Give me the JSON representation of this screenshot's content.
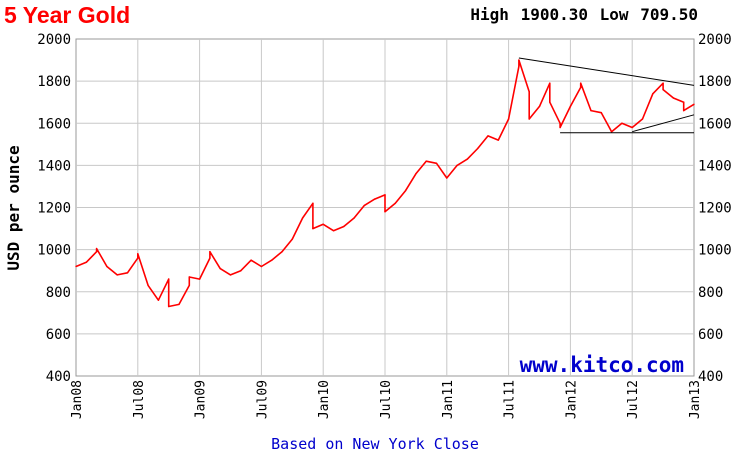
{
  "header": {
    "title": "5 Year Gold",
    "high_label": "High",
    "high_value": "1900.30",
    "low_label": "Low",
    "low_value": "709.50"
  },
  "chart_data": {
    "type": "line",
    "title": "5 Year Gold",
    "ylabel": "USD per ounce",
    "xlabel": "Based on New York Close",
    "watermark": "www.kitco.com",
    "ylim": [
      400,
      2000
    ],
    "yticks": [
      400,
      600,
      800,
      1000,
      1200,
      1400,
      1600,
      1800,
      2000
    ],
    "x_domain": [
      "Jan08",
      "Jan13"
    ],
    "xticks": [
      "Jan08",
      "Jul08",
      "Jan09",
      "Jul09",
      "Jan10",
      "Jul10",
      "Jan11",
      "Jul11",
      "Jan12",
      "Jul12",
      "Jan13"
    ],
    "grid": true,
    "high": 1900.3,
    "low": 709.5,
    "series": [
      {
        "color": "#ff0000",
        "points": [
          [
            "Jan08",
            920
          ],
          [
            "Feb08",
            940
          ],
          [
            "Mar08",
            990
          ],
          [
            "Mar08",
            1005
          ],
          [
            "Apr08",
            920
          ],
          [
            "May08",
            880
          ],
          [
            "Jun08",
            890
          ],
          [
            "Jul08",
            960
          ],
          [
            "Jul08",
            980
          ],
          [
            "Aug08",
            830
          ],
          [
            "Sep08",
            760
          ],
          [
            "Oct08",
            860
          ],
          [
            "Oct08",
            730
          ],
          [
            "Nov08",
            740
          ],
          [
            "Dec08",
            830
          ],
          [
            "Dec08",
            870
          ],
          [
            "Jan09",
            860
          ],
          [
            "Feb09",
            960
          ],
          [
            "Feb09",
            990
          ],
          [
            "Mar09",
            910
          ],
          [
            "Apr09",
            880
          ],
          [
            "May09",
            900
          ],
          [
            "Jun09",
            950
          ],
          [
            "Jul09",
            920
          ],
          [
            "Aug09",
            950
          ],
          [
            "Sep09",
            990
          ],
          [
            "Oct09",
            1050
          ],
          [
            "Nov09",
            1150
          ],
          [
            "Dec09",
            1220
          ],
          [
            "Dec09",
            1100
          ],
          [
            "Jan10",
            1120
          ],
          [
            "Feb10",
            1090
          ],
          [
            "Mar10",
            1110
          ],
          [
            "Apr10",
            1150
          ],
          [
            "May10",
            1210
          ],
          [
            "Jun10",
            1240
          ],
          [
            "Jul10",
            1260
          ],
          [
            "Jul10",
            1180
          ],
          [
            "Aug10",
            1220
          ],
          [
            "Sep10",
            1280
          ],
          [
            "Oct10",
            1360
          ],
          [
            "Nov10",
            1420
          ],
          [
            "Dec10",
            1410
          ],
          [
            "Jan11",
            1340
          ],
          [
            "Feb11",
            1400
          ],
          [
            "Mar11",
            1430
          ],
          [
            "Apr11",
            1480
          ],
          [
            "May11",
            1540
          ],
          [
            "Jun11",
            1520
          ],
          [
            "Jul11",
            1620
          ],
          [
            "Aug11",
            1870
          ],
          [
            "Aug11",
            1900
          ],
          [
            "Sep11",
            1750
          ],
          [
            "Sep11",
            1620
          ],
          [
            "Oct11",
            1680
          ],
          [
            "Nov11",
            1790
          ],
          [
            "Nov11",
            1700
          ],
          [
            "Dec11",
            1600
          ],
          [
            "Dec11",
            1580
          ],
          [
            "Jan12",
            1680
          ],
          [
            "Feb12",
            1770
          ],
          [
            "Feb12",
            1790
          ],
          [
            "Mar12",
            1660
          ],
          [
            "Apr12",
            1650
          ],
          [
            "May12",
            1560
          ],
          [
            "Jun12",
            1600
          ],
          [
            "Jul12",
            1580
          ],
          [
            "Aug12",
            1620
          ],
          [
            "Sep12",
            1740
          ],
          [
            "Oct12",
            1790
          ],
          [
            "Oct12",
            1760
          ],
          [
            "Nov12",
            1720
          ],
          [
            "Dec12",
            1700
          ],
          [
            "Dec12",
            1660
          ],
          [
            "Jan13",
            1690
          ]
        ]
      }
    ],
    "annotations": [
      {
        "type": "trendline",
        "from": [
          "Aug11",
          1910
        ],
        "to": [
          "Jan13",
          1780
        ]
      },
      {
        "type": "trendline",
        "from": [
          "Jul12",
          1560
        ],
        "to": [
          "Jan13",
          1640
        ]
      },
      {
        "type": "trendline",
        "from": [
          "Dec11",
          1555
        ],
        "to": [
          "Jan13",
          1555
        ]
      }
    ]
  }
}
